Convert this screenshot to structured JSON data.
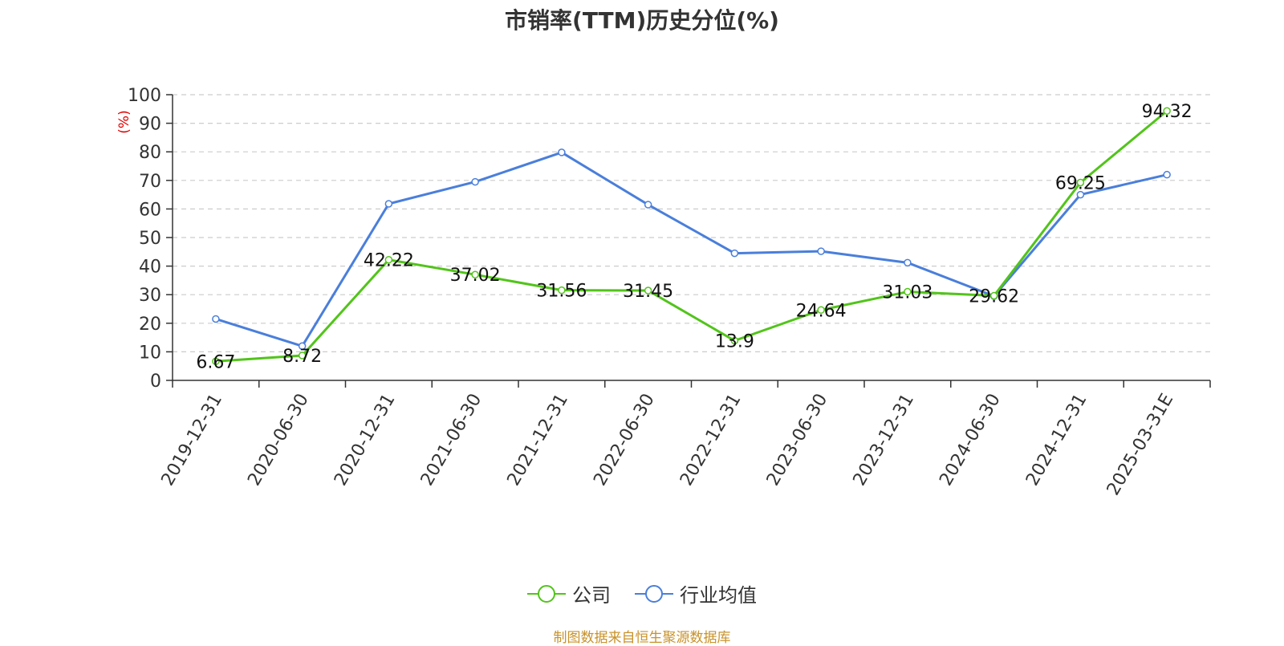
{
  "title": "市销率(TTM)历史分位(%)",
  "source": "制图数据来自恒生聚源数据库",
  "chart_data": {
    "type": "line",
    "title": "市销率(TTM)历史分位(%)",
    "ylabel": "(%)",
    "xlabel": "",
    "ylim": [
      0,
      100
    ],
    "yticks": [
      0,
      10,
      20,
      30,
      40,
      50,
      60,
      70,
      80,
      90,
      100
    ],
    "grid": true,
    "legend_position": "bottom-center",
    "categories": [
      "2019-12-31",
      "2020-06-30",
      "2020-12-31",
      "2021-06-30",
      "2021-12-31",
      "2022-06-30",
      "2022-12-31",
      "2023-06-30",
      "2023-12-31",
      "2024-06-30",
      "2024-12-31",
      "2025-03-31E"
    ],
    "series": [
      {
        "name": "公司",
        "color": "#52c41a",
        "values": [
          6.67,
          8.72,
          42.22,
          37.02,
          31.56,
          31.45,
          13.9,
          24.64,
          31.03,
          29.62,
          69.25,
          94.32
        ],
        "labels": [
          "6.67",
          "8.72",
          "42.22",
          "37.02",
          "31.56",
          "31.45",
          "13.9",
          "24.64",
          "31.03",
          "29.62",
          "69.25",
          "94.32"
        ]
      },
      {
        "name": "行业均值",
        "color": "#4a7fdb",
        "values": [
          21.5,
          12.0,
          61.8,
          69.5,
          79.8,
          61.5,
          44.5,
          45.2,
          41.2,
          29.5,
          65.0,
          72.0
        ]
      }
    ]
  }
}
